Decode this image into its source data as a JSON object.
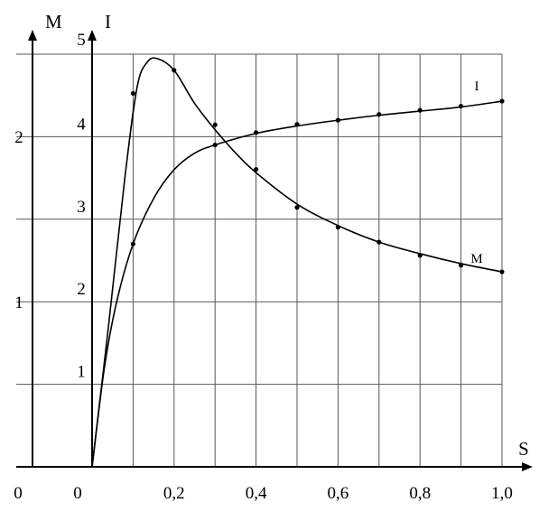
{
  "chart_data": {
    "type": "line",
    "title": "",
    "xlabel": "S",
    "x_ticks": [
      {
        "value": 0.2,
        "label": "0,2"
      },
      {
        "value": 0.4,
        "label": "0,4"
      },
      {
        "value": 0.6,
        "label": "0,6"
      },
      {
        "value": 0.8,
        "label": "0,8"
      },
      {
        "value": 1.0,
        "label": "1,0"
      }
    ],
    "xlim": [
      0,
      1.0
    ],
    "grid": true,
    "y_axes": [
      {
        "id": "M",
        "label": "M",
        "origin_label": "0",
        "ylim": [
          0,
          2.65
        ],
        "ticks": [
          {
            "value": 1,
            "label": "1"
          },
          {
            "value": 2,
            "label": "2"
          }
        ]
      },
      {
        "id": "I",
        "label": "I",
        "origin_label": "0",
        "ylim": [
          0,
          5
        ],
        "ticks": [
          {
            "value": 1,
            "label": "1"
          },
          {
            "value": 2,
            "label": "2"
          },
          {
            "value": 3,
            "label": "3"
          },
          {
            "value": 4,
            "label": "4"
          },
          {
            "value": 5,
            "label": "5"
          }
        ]
      }
    ],
    "series": [
      {
        "name": "M",
        "axis": "M",
        "points": [
          [
            0.1,
            2.26
          ],
          [
            0.2,
            2.4
          ],
          [
            0.3,
            2.07
          ],
          [
            0.4,
            1.8
          ],
          [
            0.5,
            1.57
          ],
          [
            0.6,
            1.45
          ],
          [
            0.7,
            1.36
          ],
          [
            0.8,
            1.28
          ],
          [
            0.9,
            1.22
          ],
          [
            1.0,
            1.18
          ]
        ],
        "curve": [
          [
            0,
            0
          ],
          [
            0.04,
            0.85
          ],
          [
            0.08,
            1.75
          ],
          [
            0.11,
            2.3
          ],
          [
            0.135,
            2.45
          ],
          [
            0.16,
            2.47
          ],
          [
            0.2,
            2.4
          ],
          [
            0.25,
            2.2
          ],
          [
            0.3,
            2.04
          ],
          [
            0.35,
            1.9
          ],
          [
            0.4,
            1.78
          ],
          [
            0.5,
            1.59
          ],
          [
            0.6,
            1.46
          ],
          [
            0.7,
            1.36
          ],
          [
            0.8,
            1.29
          ],
          [
            0.9,
            1.23
          ],
          [
            1.0,
            1.18
          ]
        ]
      },
      {
        "name": "I",
        "axis": "I",
        "points": [
          [
            0.1,
            2.7
          ],
          [
            0.3,
            3.9
          ],
          [
            0.4,
            4.05
          ],
          [
            0.5,
            4.15
          ],
          [
            0.6,
            4.2
          ],
          [
            0.7,
            4.27
          ],
          [
            0.8,
            4.32
          ],
          [
            0.9,
            4.37
          ],
          [
            1.0,
            4.43
          ]
        ],
        "curve": [
          [
            0,
            0
          ],
          [
            0.03,
            1.2
          ],
          [
            0.06,
            2.0
          ],
          [
            0.1,
            2.7
          ],
          [
            0.15,
            3.25
          ],
          [
            0.2,
            3.6
          ],
          [
            0.25,
            3.8
          ],
          [
            0.3,
            3.9
          ],
          [
            0.4,
            4.04
          ],
          [
            0.5,
            4.13
          ],
          [
            0.6,
            4.2
          ],
          [
            0.7,
            4.26
          ],
          [
            0.8,
            4.31
          ],
          [
            0.9,
            4.36
          ],
          [
            1.0,
            4.43
          ]
        ]
      }
    ]
  }
}
